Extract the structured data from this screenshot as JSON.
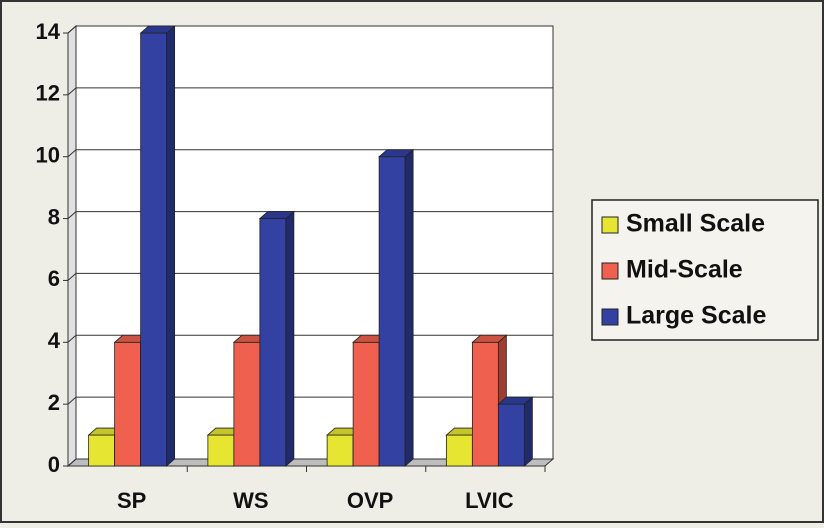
{
  "chart_data": {
    "type": "bar",
    "categories": [
      "SP",
      "WS",
      "OVP",
      "LVIC"
    ],
    "series": [
      {
        "name": "Small Scale",
        "color": "#e6e632",
        "values": [
          1,
          1,
          1,
          1
        ]
      },
      {
        "name": "Mid-Scale",
        "color": "#f0604e",
        "values": [
          4,
          4,
          4,
          4
        ]
      },
      {
        "name": "Large Scale",
        "color": "#3341a3",
        "values": [
          14,
          8,
          10,
          2
        ]
      }
    ],
    "ylim": [
      0,
      14
    ],
    "yticks": [
      0,
      2,
      4,
      6,
      8,
      10,
      12,
      14
    ],
    "grid": true,
    "legend": "right"
  }
}
